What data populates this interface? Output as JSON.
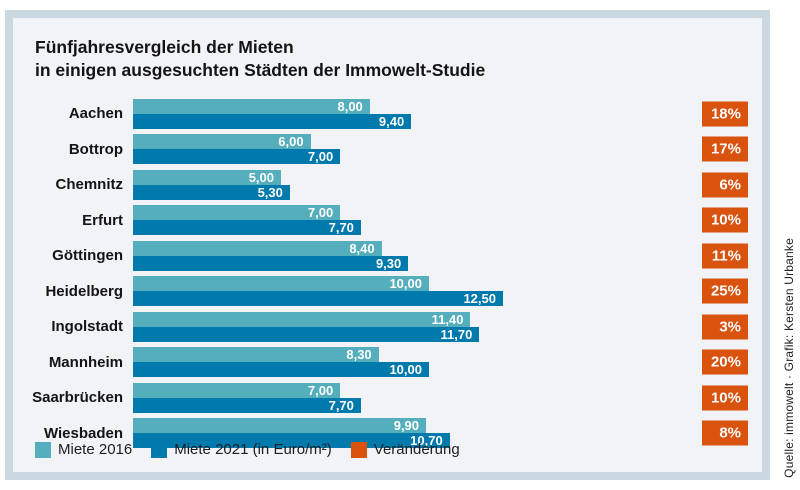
{
  "title": {
    "line1": "Fünfjahresvergleich der Mieten",
    "line2": "in einigen ausgesuchten Städten der Immowelt-Studie"
  },
  "chart_data": {
    "type": "bar",
    "orientation": "horizontal",
    "categories": [
      "Aachen",
      "Bottrop",
      "Chemnitz",
      "Erfurt",
      "Göttingen",
      "Heidelberg",
      "Ingolstadt",
      "Mannheim",
      "Saarbrücken",
      "Wiesbaden"
    ],
    "series": [
      {
        "name": "Miete 2016",
        "values": [
          8.0,
          6.0,
          5.0,
          7.0,
          8.4,
          10.0,
          11.4,
          8.3,
          7.0,
          9.9
        ],
        "color": "#54aebb"
      },
      {
        "name": "Miete 2021 (in Euro/m²)",
        "values": [
          9.4,
          7.0,
          5.3,
          7.7,
          9.3,
          12.5,
          11.7,
          10.0,
          7.7,
          10.7
        ],
        "color": "#0079ad"
      }
    ],
    "value_labels": [
      [
        "8,00",
        "9,40"
      ],
      [
        "6,00",
        "7,00"
      ],
      [
        "5,00",
        "5,30"
      ],
      [
        "7,00",
        "7,70"
      ],
      [
        "8,40",
        "9,30"
      ],
      [
        "10,00",
        "12,50"
      ],
      [
        "11,40",
        "11,70"
      ],
      [
        "8,30",
        "10,00"
      ],
      [
        "7,00",
        "7,70"
      ],
      [
        "9,90",
        "10,70"
      ]
    ],
    "change_percent": [
      18,
      17,
      6,
      10,
      11,
      25,
      3,
      20,
      10,
      8
    ],
    "change_labels": [
      "18%",
      "17%",
      "6%",
      "10%",
      "11%",
      "25%",
      "3%",
      "20%",
      "10%",
      "8%"
    ],
    "unit": "Euro/m²",
    "xlim": [
      0,
      12.5
    ],
    "grid": false,
    "legend_position": "bottom"
  },
  "legend": {
    "items": [
      {
        "label": "Miete 2016",
        "color": "#54aebb"
      },
      {
        "label": "Miete 2021 (in Euro/m²)",
        "color": "#0079ad"
      },
      {
        "label": "Veränderung",
        "color": "#d9520e"
      }
    ]
  },
  "source": "Quelle: immowelt · Grafik: Kersten Urbanke",
  "colors": {
    "teal": "#54aebb",
    "blue": "#0079ad",
    "orange": "#d9520e",
    "frame": "#cbd7e1",
    "panel": "#f1f3f6"
  }
}
